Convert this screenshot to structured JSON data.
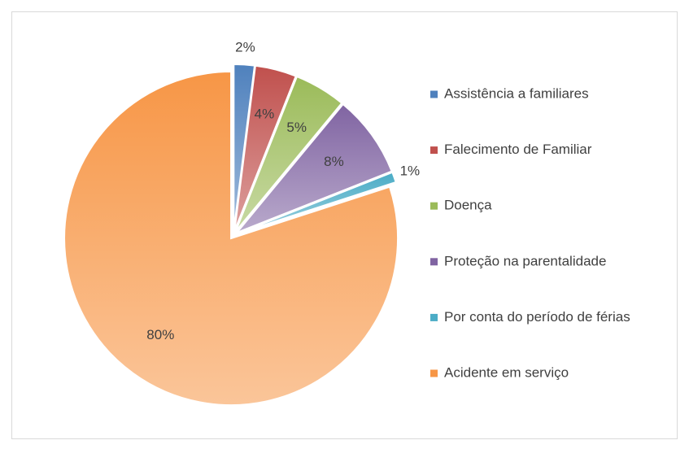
{
  "chart_data": {
    "type": "pie",
    "categories": [
      "Assistência a familiares",
      "Falecimento de Familiar",
      "Doença",
      "Proteção na parentalidade",
      "Por conta do período de férias",
      "Acidente em serviço"
    ],
    "values": [
      2,
      4,
      5,
      8,
      1,
      80
    ],
    "value_labels": [
      "2%",
      "4%",
      "5%",
      "8%",
      "1%",
      "80%"
    ],
    "colors": [
      "#4f81bd",
      "#c0504d",
      "#9bbb59",
      "#8064a2",
      "#4bacc6",
      "#f79646"
    ],
    "legend": "right"
  }
}
